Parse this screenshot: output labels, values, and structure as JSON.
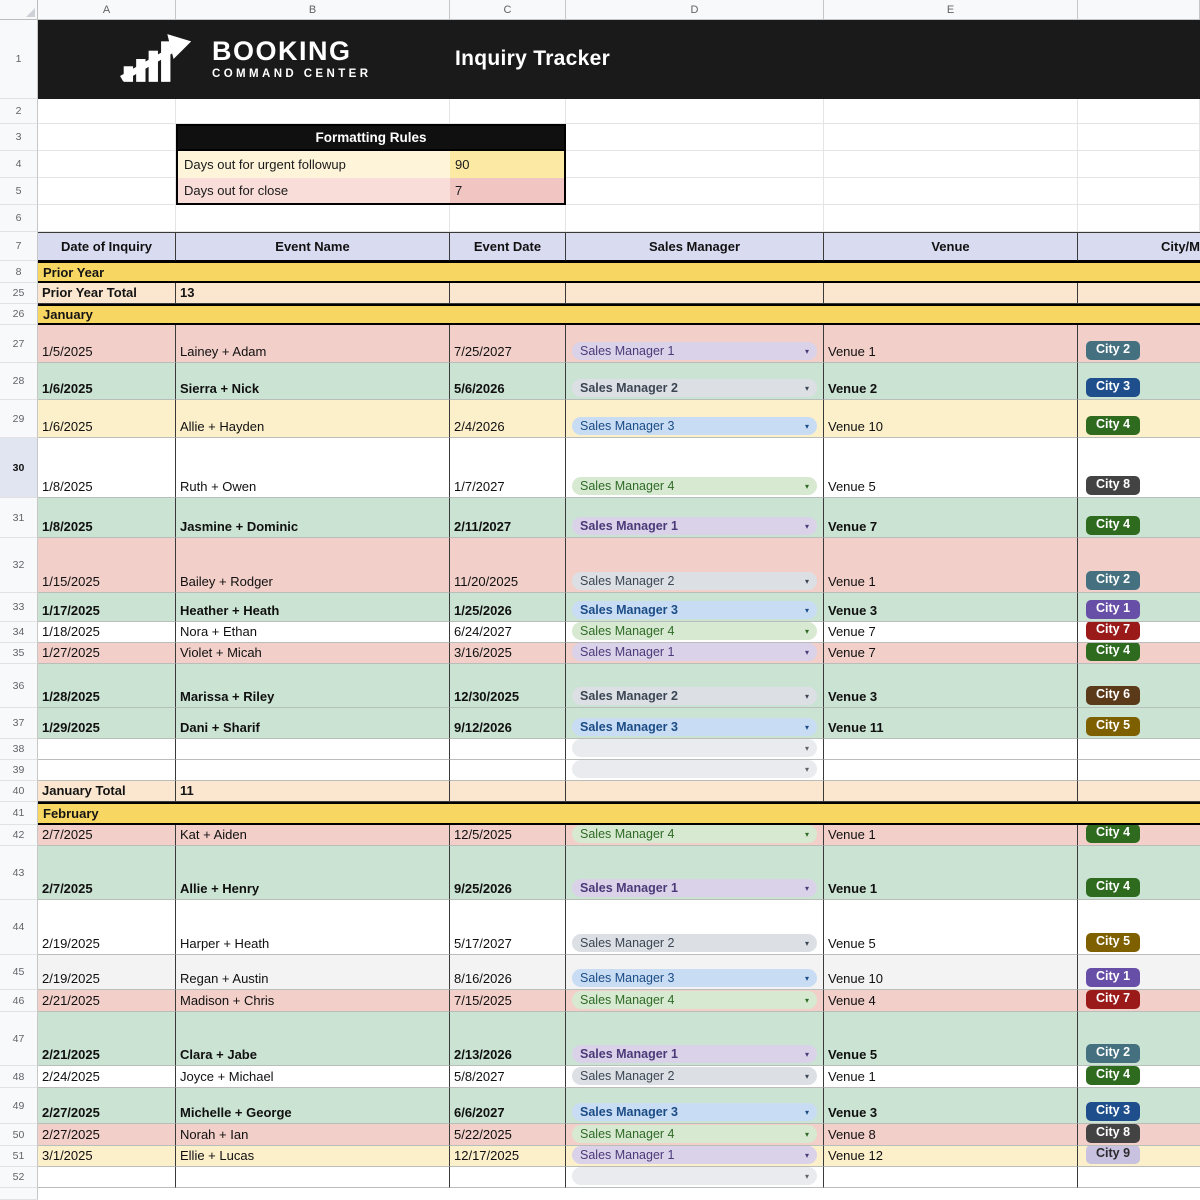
{
  "chrome": {
    "column_letters": [
      "A",
      "B",
      "C",
      "D",
      "E",
      ""
    ]
  },
  "brand": {
    "name": "BOOKING",
    "tagline": "COMMAND CENTER"
  },
  "header_band": {
    "title": "Inquiry Tracker"
  },
  "formatting_rules": {
    "title": "Formatting Rules",
    "rules": [
      {
        "label": "Days out for urgent followup",
        "value": "90",
        "tone": "yellow"
      },
      {
        "label": "Days out for close",
        "value": "7",
        "tone": "red"
      }
    ]
  },
  "table_headers": [
    "Date of Inquiry",
    "Event Name",
    "Event Date",
    "Sales Manager",
    "Venue",
    "City/M"
  ],
  "icons": {
    "dropdown_arrow": "▾"
  },
  "rows": [
    {
      "n": "1",
      "type": "brand"
    },
    {
      "n": "2",
      "type": "blank"
    },
    {
      "n": "3",
      "type": "rules_header"
    },
    {
      "n": "4",
      "type": "rule",
      "index": 0
    },
    {
      "n": "5",
      "type": "rule",
      "index": 1
    },
    {
      "n": "6",
      "type": "blank"
    },
    {
      "n": "7",
      "type": "header"
    },
    {
      "n": "8",
      "type": "section",
      "label": "Prior Year"
    },
    {
      "n": "25",
      "type": "total",
      "label": "Prior Year Total",
      "value": "13"
    },
    {
      "n": "26",
      "type": "section",
      "label": "January"
    },
    {
      "n": "27",
      "type": "data",
      "bg": "pink",
      "bold": false,
      "date": "1/5/2025",
      "event": "Lainey + Adam",
      "event_date": "7/25/2027",
      "manager": "Sales Manager 1",
      "manager_theme": "sm1",
      "venue": "Venue 1",
      "city": "City 2"
    },
    {
      "n": "28",
      "type": "data",
      "bg": "green",
      "bold": true,
      "date": "1/6/2025",
      "event": "Sierra + Nick",
      "event_date": "5/6/2026",
      "manager": "Sales Manager 2",
      "manager_theme": "sm2",
      "venue": "Venue 2",
      "city": "City 3"
    },
    {
      "n": "29",
      "type": "data",
      "bg": "yellow",
      "bold": false,
      "date": "1/6/2025",
      "event": "Allie + Hayden",
      "event_date": "2/4/2026",
      "manager": "Sales Manager 3",
      "manager_theme": "sm3",
      "venue": "Venue 10",
      "city": "City 4"
    },
    {
      "n": "30",
      "type": "data",
      "bg": "white",
      "bold": false,
      "active": true,
      "date": "1/8/2025",
      "event": "Ruth + Owen",
      "event_date": "1/7/2027",
      "manager": "Sales Manager 4",
      "manager_theme": "sm4",
      "venue": "Venue 5",
      "city": "City 8"
    },
    {
      "n": "31",
      "type": "data",
      "bg": "green",
      "bold": true,
      "date": "1/8/2025",
      "event": "Jasmine + Dominic",
      "event_date": "2/11/2027",
      "manager": "Sales Manager 1",
      "manager_theme": "sm1",
      "venue": "Venue 7",
      "city": "City 4"
    },
    {
      "n": "32",
      "type": "data",
      "bg": "pink",
      "bold": false,
      "date": "1/15/2025",
      "event": "Bailey + Rodger",
      "event_date": "11/20/2025",
      "manager": "Sales Manager 2",
      "manager_theme": "sm2",
      "venue": "Venue 1",
      "city": "City 2"
    },
    {
      "n": "33",
      "type": "data",
      "bg": "green",
      "bold": true,
      "date": "1/17/2025",
      "event": "Heather + Heath",
      "event_date": "1/25/2026",
      "manager": "Sales Manager 3",
      "manager_theme": "sm3",
      "venue": "Venue 3",
      "city": "City 1"
    },
    {
      "n": "34",
      "type": "data",
      "bg": "white",
      "bold": false,
      "date": "1/18/2025",
      "event": "Nora + Ethan",
      "event_date": "6/24/2027",
      "manager": "Sales Manager 4",
      "manager_theme": "sm4",
      "venue": "Venue 7",
      "city": "City 7"
    },
    {
      "n": "35",
      "type": "data",
      "bg": "pink",
      "bold": false,
      "date": "1/27/2025",
      "event": "Violet + Micah",
      "event_date": "3/16/2025",
      "manager": "Sales Manager 1",
      "manager_theme": "sm1",
      "venue": "Venue 7",
      "city": "City 4"
    },
    {
      "n": "36",
      "type": "data",
      "bg": "green",
      "bold": true,
      "date": "1/28/2025",
      "event": "Marissa + Riley",
      "event_date": "12/30/2025",
      "manager": "Sales Manager 2",
      "manager_theme": "sm2",
      "venue": "Venue 3",
      "city": "City 6"
    },
    {
      "n": "37",
      "type": "data",
      "bg": "green",
      "bold": true,
      "date": "1/29/2025",
      "event": "Dani + Sharif",
      "event_date": "9/12/2026",
      "manager": "Sales Manager 3",
      "manager_theme": "sm3",
      "venue": "Venue 11",
      "city": "City 5"
    },
    {
      "n": "38",
      "type": "empty"
    },
    {
      "n": "39",
      "type": "empty"
    },
    {
      "n": "40",
      "type": "total",
      "label": "January Total",
      "value": "11"
    },
    {
      "n": "41",
      "type": "section",
      "label": "February"
    },
    {
      "n": "42",
      "type": "data",
      "bg": "pink",
      "bold": false,
      "date": "2/7/2025",
      "event": "Kat + Aiden",
      "event_date": "12/5/2025",
      "manager": "Sales Manager 4",
      "manager_theme": "sm4",
      "venue": "Venue 1",
      "city": "City 4"
    },
    {
      "n": "43",
      "type": "data",
      "bg": "green",
      "bold": true,
      "date": "2/7/2025",
      "event": "Allie + Henry",
      "event_date": "9/25/2026",
      "manager": "Sales Manager 1",
      "manager_theme": "sm1",
      "venue": "Venue 1",
      "city": "City 4"
    },
    {
      "n": "44",
      "type": "data",
      "bg": "white",
      "bold": false,
      "date": "2/19/2025",
      "event": "Harper + Heath",
      "event_date": "5/17/2027",
      "manager": "Sales Manager 2",
      "manager_theme": "sm2",
      "venue": "Venue 5",
      "city": "City 5"
    },
    {
      "n": "45",
      "type": "data",
      "bg": "gray",
      "bold": false,
      "date": "2/19/2025",
      "event": "Regan + Austin",
      "event_date": "8/16/2026",
      "manager": "Sales Manager 3",
      "manager_theme": "sm3",
      "venue": "Venue 10",
      "city": "City 1"
    },
    {
      "n": "46",
      "type": "data",
      "bg": "pink",
      "bold": false,
      "date": "2/21/2025",
      "event": "Madison + Chris",
      "event_date": "7/15/2025",
      "manager": "Sales Manager 4",
      "manager_theme": "sm4",
      "venue": "Venue 4",
      "city": "City 7"
    },
    {
      "n": "47",
      "type": "data",
      "bg": "green",
      "bold": true,
      "date": "2/21/2025",
      "event": "Clara + Jabe",
      "event_date": "2/13/2026",
      "manager": "Sales Manager 1",
      "manager_theme": "sm1",
      "venue": "Venue 5",
      "city": "City 2"
    },
    {
      "n": "48",
      "type": "data",
      "bg": "white",
      "bold": false,
      "date": "2/24/2025",
      "event": "Joyce + Michael",
      "event_date": "5/8/2027",
      "manager": "Sales Manager 2",
      "manager_theme": "sm2",
      "venue": "Venue 1",
      "city": "City 4"
    },
    {
      "n": "49",
      "type": "data",
      "bg": "green",
      "bold": true,
      "date": "2/27/2025",
      "event": "Michelle + George",
      "event_date": "6/6/2027",
      "manager": "Sales Manager 3",
      "manager_theme": "sm3",
      "venue": "Venue 3",
      "city": "City 3"
    },
    {
      "n": "50",
      "type": "data",
      "bg": "pink",
      "bold": false,
      "date": "2/27/2025",
      "event": "Norah + Ian",
      "event_date": "5/22/2025",
      "manager": "Sales Manager 4",
      "manager_theme": "sm4",
      "venue": "Venue 8",
      "city": "City 8"
    },
    {
      "n": "51",
      "type": "data",
      "bg": "yellow",
      "bold": false,
      "date": "3/1/2025",
      "event": "Ellie + Lucas",
      "event_date": "12/17/2025",
      "manager": "Sales Manager 1",
      "manager_theme": "sm1",
      "venue": "Venue 12",
      "city": "City 9"
    },
    {
      "n": "52",
      "type": "empty"
    },
    {
      "n": "",
      "type": "filler"
    }
  ],
  "palette": {
    "brand_band_bg": "#1a1a1a",
    "header_row_bg": "#d9dbf1",
    "section_bg": "#f8d662",
    "total_bg": "#fbe7d0",
    "row_bg": {
      "pink": "#f2cfc9",
      "green": "#cbe3d3",
      "yellow": "#fcf0cb",
      "white": "#ffffff",
      "gray": "#f3f3f3"
    },
    "rule_tones": {
      "yellow": {
        "label": "#fdf4d9",
        "value": "#fbe9a4"
      },
      "red": {
        "label": "#f8ddd9",
        "value": "#f1c6c2"
      }
    },
    "manager_chips": {
      "sm1": {
        "bg": "#d9d2e9",
        "text": "#4b3a78"
      },
      "sm2": {
        "bg": "#dce0e5",
        "text": "#3c4653"
      },
      "sm3": {
        "bg": "#c8dcf4",
        "text": "#1c4c85"
      },
      "sm4": {
        "bg": "#d7e9d0",
        "text": "#2f6b27"
      },
      "empty": {
        "bg": "#e9ebee",
        "text": "#5f6368"
      }
    },
    "city_badges": {
      "City 1": {
        "bg": "#674ea7",
        "text": "#ffffff"
      },
      "City 2": {
        "bg": "#44707f",
        "text": "#ffffff"
      },
      "City 3": {
        "bg": "#1e4e8c",
        "text": "#ffffff"
      },
      "City 4": {
        "bg": "#2e6b1f",
        "text": "#ffffff"
      },
      "City 5": {
        "bg": "#7f6000",
        "text": "#ffffff"
      },
      "City 6": {
        "bg": "#5b3a1a",
        "text": "#ffffff"
      },
      "City 7": {
        "bg": "#9a1a1a",
        "text": "#ffffff"
      },
      "City 8": {
        "bg": "#434343",
        "text": "#ffffff"
      },
      "City 9": {
        "bg": "#c8c2e0",
        "text": "#2b2b2b"
      }
    }
  }
}
